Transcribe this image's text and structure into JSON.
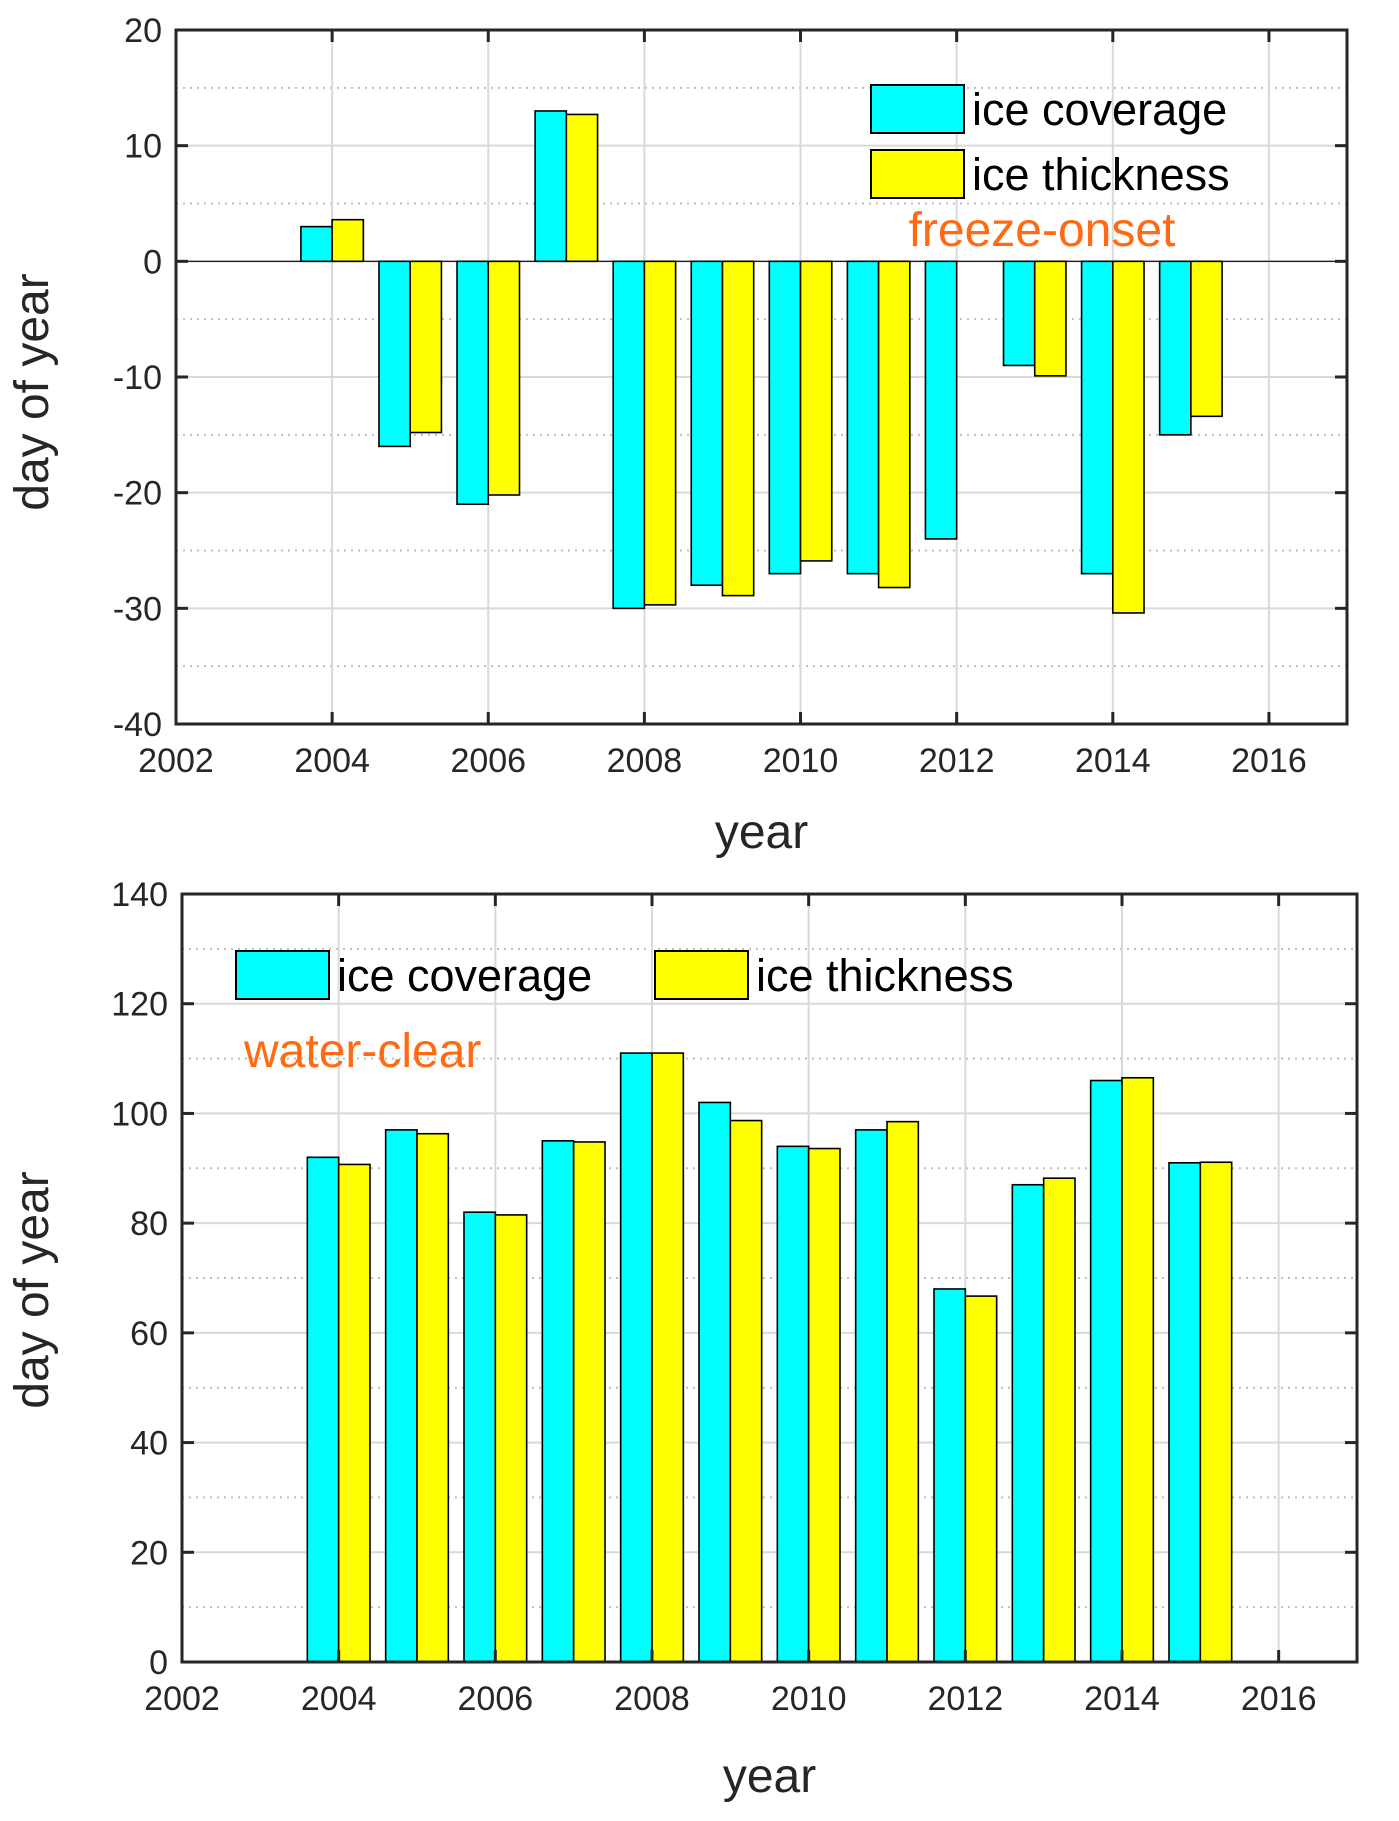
{
  "colors": {
    "ice_coverage": "#00ffff",
    "ice_thickness": "#ffff00",
    "annotation": "#ff6a13",
    "axis": "#262626",
    "grid": "#d9d9d9"
  },
  "chart_data": [
    {
      "type": "bar",
      "title": "",
      "annotation": "freeze-onset",
      "xlabel": "year",
      "ylabel": "day of year",
      "xlim": [
        2002,
        2017
      ],
      "ylim": [
        -40,
        20
      ],
      "xticks": [
        "2002",
        "2004",
        "2006",
        "2008",
        "2010",
        "2012",
        "2014",
        "2016"
      ],
      "yticks": [
        "-40",
        "-30",
        "-20",
        "-10",
        "0",
        "10",
        "20"
      ],
      "grid": true,
      "legend": {
        "placement": "top-right",
        "layout": "vertical"
      },
      "categories": [
        2004,
        2005,
        2006,
        2007,
        2008,
        2009,
        2010,
        2011,
        2012,
        2013,
        2014,
        2015
      ],
      "series": [
        {
          "name": "ice coverage",
          "color": "#00ffff",
          "values": [
            3,
            -16,
            -21,
            13,
            -30,
            -28,
            -27,
            -27,
            -24,
            -9,
            -27,
            -15
          ]
        },
        {
          "name": "ice thickness",
          "color": "#ffff00",
          "values": [
            3.6,
            -14.8,
            -20.2,
            12.7,
            -29.7,
            -28.9,
            -25.9,
            -28.2,
            null,
            -9.9,
            -30.4,
            -13.4
          ]
        }
      ]
    },
    {
      "type": "bar",
      "title": "",
      "annotation": "water-clear",
      "xlabel": "year",
      "ylabel": "day of year",
      "xlim": [
        2002,
        2017
      ],
      "ylim": [
        0,
        140
      ],
      "xticks": [
        "2002",
        "2004",
        "2006",
        "2008",
        "2010",
        "2012",
        "2014",
        "2016"
      ],
      "yticks": [
        "0",
        "20",
        "40",
        "60",
        "80",
        "100",
        "120",
        "140"
      ],
      "grid": true,
      "legend": {
        "placement": "top-left",
        "layout": "horizontal"
      },
      "categories": [
        2004,
        2005,
        2006,
        2007,
        2008,
        2009,
        2010,
        2011,
        2012,
        2013,
        2014,
        2015
      ],
      "series": [
        {
          "name": "ice coverage",
          "color": "#00ffff",
          "values": [
            92,
            97,
            82,
            95,
            111,
            102,
            94,
            97,
            68,
            87,
            106,
            91
          ]
        },
        {
          "name": "ice thickness",
          "color": "#ffff00",
          "values": [
            90.7,
            96.3,
            81.5,
            94.8,
            111,
            98.7,
            93.6,
            98.5,
            66.7,
            88.2,
            106.5,
            91.1
          ]
        }
      ]
    }
  ]
}
